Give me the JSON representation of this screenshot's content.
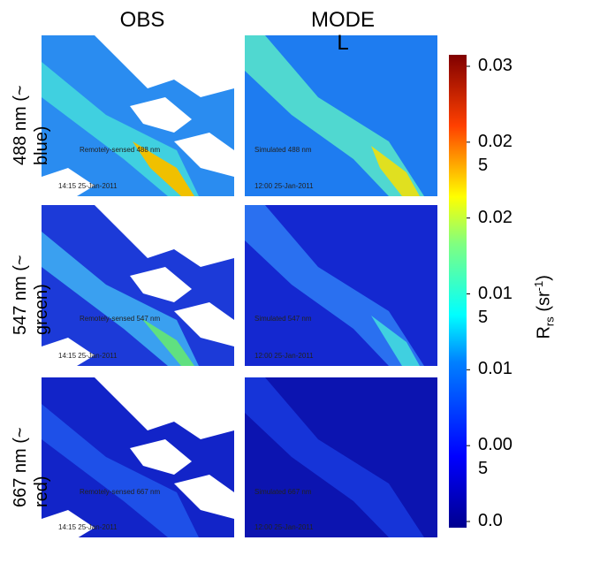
{
  "columns": [
    "OBS",
    "MODEL"
  ],
  "rows": [
    "488 nm (~ blue)",
    "547 nm (~ green)",
    "667 nm (~ red)"
  ],
  "panels": [
    [
      {
        "label": "Remotely-sensed 488 nm",
        "time": "14:15 25-Jan-2011"
      },
      {
        "label": "Simulated 488 nm",
        "time": "12:00 25-Jan-2011"
      }
    ],
    [
      {
        "label": "Remotely-sensed 547 nm",
        "time": "14:15 25-Jan-2011"
      },
      {
        "label": "Simulated 547 nm",
        "time": "12:00 25-Jan-2011"
      }
    ],
    [
      {
        "label": "Remotely-sensed 667 nm",
        "time": "14:15 25-Jan-2011"
      },
      {
        "label": "Simulated 667 nm",
        "time": "12:00 25-Jan-2011"
      }
    ]
  ],
  "colorbar": {
    "lim": [
      0,
      0.03
    ],
    "ticks": [
      0.03,
      0.025,
      0.02,
      0.015,
      0.01,
      0.005,
      {
        "value": 0,
        "label": "0.0"
      }
    ],
    "label": {
      "main": "R",
      "sub": "rs",
      "unit": "(sr",
      "sup": "-1",
      "close": ")"
    }
  }
}
